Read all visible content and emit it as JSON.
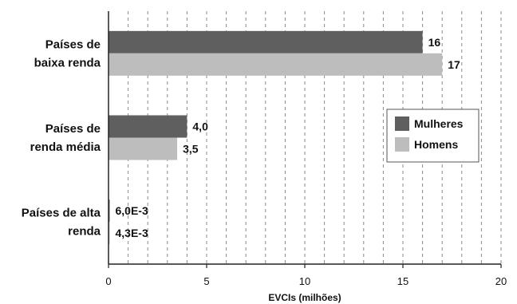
{
  "chart_data": {
    "type": "bar",
    "orientation": "horizontal",
    "categories": [
      [
        "Países de",
        "baixa renda"
      ],
      [
        "Países de",
        "renda média"
      ],
      [
        "Países de alta",
        "renda"
      ]
    ],
    "series": [
      {
        "name": "Mulheres",
        "values": [
          16,
          4.0,
          0.006
        ],
        "labels": [
          "16",
          "4,0",
          "6,0E-3"
        ],
        "color": "#5f5f5f"
      },
      {
        "name": "Homens",
        "values": [
          17,
          3.5,
          0.0043
        ],
        "labels": [
          "17",
          "3,5",
          "4,3E-3"
        ],
        "color": "#bdbdbd"
      }
    ],
    "xlabel": "EVCIs (milhões)",
    "xlim": [
      0,
      20
    ],
    "xticks": [
      0,
      5,
      10,
      15,
      20
    ],
    "grid": "vertical dashed, every 1 unit",
    "legend_position": "right"
  }
}
